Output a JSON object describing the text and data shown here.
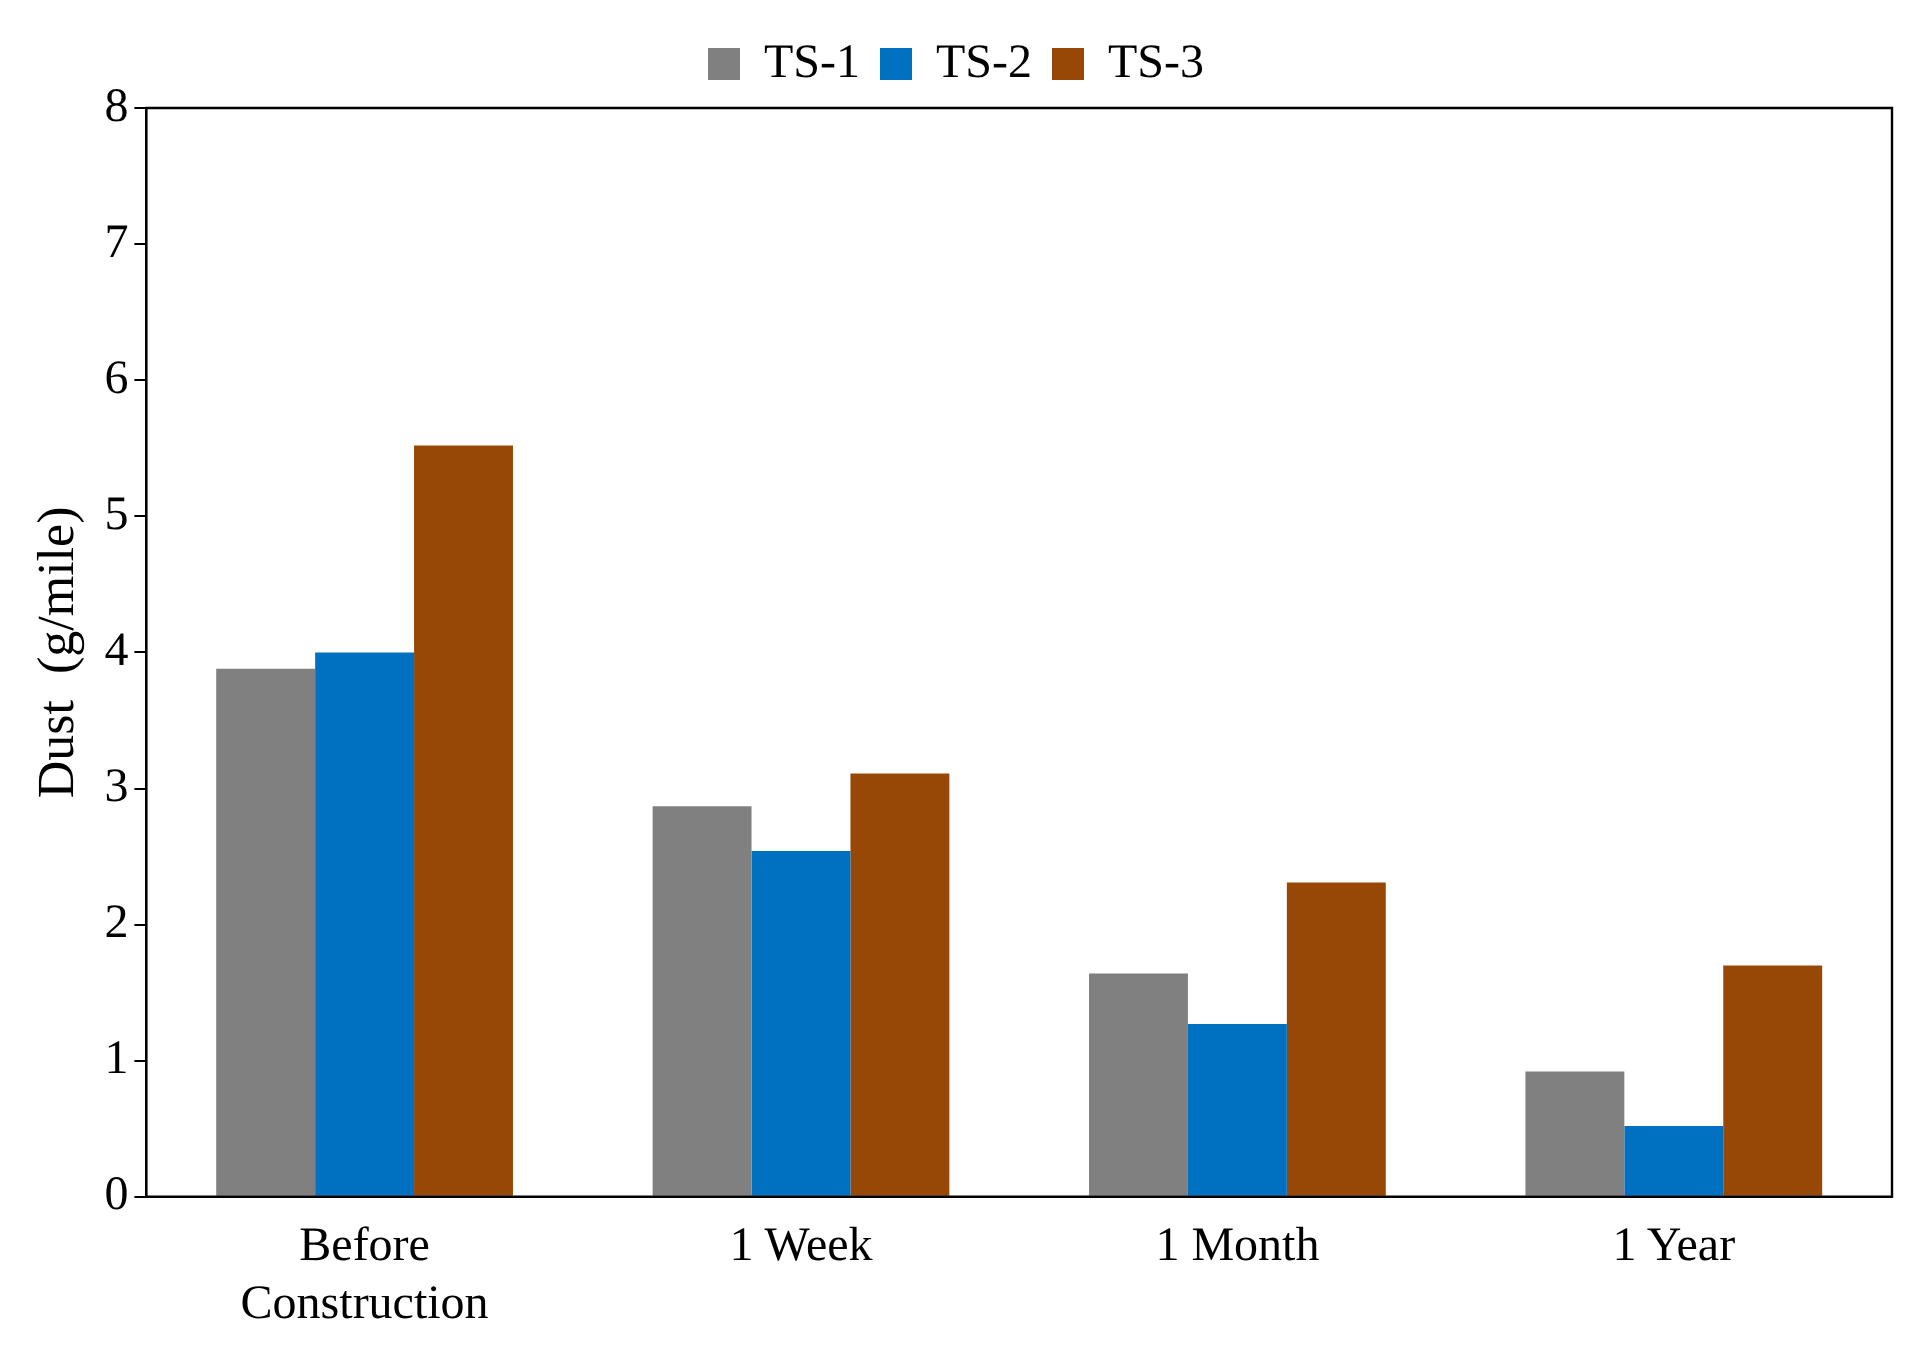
{
  "chart_data": {
    "type": "bar",
    "ylabel": "Dust  (g/mile)",
    "categories": [
      "Before Construction",
      "1 Week",
      "1 Month",
      "1 Year"
    ],
    "series": [
      {
        "name": "TS-1",
        "color": "#808080",
        "values": [
          3.88,
          2.87,
          1.64,
          0.92
        ]
      },
      {
        "name": "TS-2",
        "color": "#0070c0",
        "values": [
          4.0,
          2.54,
          1.27,
          0.52
        ]
      },
      {
        "name": "TS-3",
        "color": "#974706",
        "values": [
          5.52,
          3.11,
          2.31,
          1.7
        ]
      }
    ],
    "ylim": [
      0,
      8
    ],
    "yticks": [
      0,
      1,
      2,
      3,
      4,
      5,
      6,
      7,
      8
    ],
    "grid": false,
    "legend": "top"
  }
}
